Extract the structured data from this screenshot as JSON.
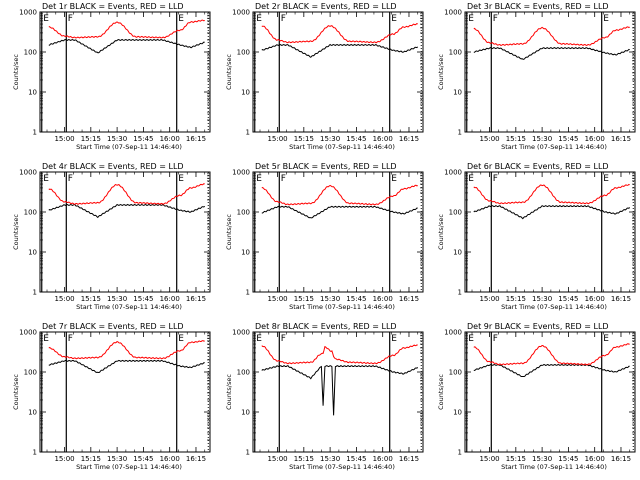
{
  "figure": {
    "ylabel": "Counts/sec",
    "xlabel": "Start Time (07-Sep-11 14:46:40)",
    "x_ticks": [
      "15:00",
      "15:15",
      "15:30",
      "15:45",
      "16:00",
      "16:15"
    ],
    "y_ticks": [
      "1",
      "10",
      "100",
      "1000"
    ],
    "markers": [
      "E",
      "F",
      "E"
    ]
  },
  "colors": {
    "events": "#000000",
    "lld": "#ff0000"
  },
  "chart_data": [
    {
      "type": "line",
      "title": "Det 1r BLACK = Events, RED = LLD",
      "yscale": "log",
      "ylim": [
        1,
        1000
      ],
      "x": [
        "14:51",
        "15:00",
        "15:06",
        "15:19",
        "15:30",
        "15:41",
        "15:56",
        "16:06",
        "16:12",
        "16:20"
      ],
      "series": [
        {
          "values": [
            150,
            200,
            200,
            95,
            200,
            200,
            200,
            150,
            130,
            175
          ]
        },
        {
          "values": [
            420,
            250,
            230,
            240,
            550,
            240,
            230,
            350,
            560,
            620
          ]
        }
      ]
    },
    {
      "type": "line",
      "title": "Det 2r BLACK = Events, RED = LLD",
      "yscale": "log",
      "ylim": [
        1,
        1000
      ],
      "x": [
        "14:51",
        "15:00",
        "15:06",
        "15:19",
        "15:30",
        "15:41",
        "15:56",
        "16:06",
        "16:12",
        "16:20"
      ],
      "series": [
        {
          "values": [
            110,
            150,
            150,
            75,
            150,
            150,
            150,
            110,
            100,
            135
          ]
        },
        {
          "values": [
            450,
            200,
            175,
            185,
            450,
            185,
            175,
            280,
            420,
            500
          ]
        }
      ]
    },
    {
      "type": "line",
      "title": "Det 3r BLACK = Events, RED = LLD",
      "yscale": "log",
      "ylim": [
        1,
        1000
      ],
      "x": [
        "14:51",
        "15:00",
        "15:06",
        "15:19",
        "15:30",
        "15:41",
        "15:56",
        "16:06",
        "16:12",
        "16:20"
      ],
      "series": [
        {
          "values": [
            100,
            125,
            125,
            65,
            125,
            125,
            125,
            95,
            85,
            115
          ]
        },
        {
          "values": [
            380,
            170,
            150,
            160,
            400,
            160,
            150,
            230,
            350,
            420
          ]
        }
      ]
    },
    {
      "type": "line",
      "title": "Det 4r BLACK = Events, RED = LLD",
      "yscale": "log",
      "ylim": [
        1,
        1000
      ],
      "x": [
        "14:51",
        "15:00",
        "15:06",
        "15:19",
        "15:30",
        "15:41",
        "15:56",
        "16:06",
        "16:12",
        "16:20"
      ],
      "series": [
        {
          "values": [
            110,
            150,
            150,
            75,
            150,
            150,
            150,
            110,
            100,
            140
          ]
        },
        {
          "values": [
            380,
            180,
            160,
            170,
            480,
            170,
            160,
            260,
            400,
            500
          ]
        }
      ]
    },
    {
      "type": "line",
      "title": "Det 5r BLACK = Events, RED = LLD",
      "yscale": "log",
      "ylim": [
        1,
        1000
      ],
      "x": [
        "14:51",
        "15:00",
        "15:06",
        "15:19",
        "15:30",
        "15:41",
        "15:56",
        "16:06",
        "16:12",
        "16:20"
      ],
      "series": [
        {
          "values": [
            95,
            135,
            135,
            70,
            135,
            135,
            135,
            100,
            90,
            125
          ]
        },
        {
          "values": [
            400,
            180,
            155,
            165,
            450,
            165,
            155,
            250,
            380,
            460
          ]
        }
      ]
    },
    {
      "type": "line",
      "title": "Det 6r BLACK = Events, RED = LLD",
      "yscale": "log",
      "ylim": [
        1,
        1000
      ],
      "x": [
        "14:51",
        "15:00",
        "15:06",
        "15:19",
        "15:30",
        "15:41",
        "15:56",
        "16:06",
        "16:12",
        "16:20"
      ],
      "series": [
        {
          "values": [
            100,
            140,
            140,
            70,
            140,
            140,
            140,
            100,
            90,
            130
          ]
        },
        {
          "values": [
            420,
            190,
            165,
            175,
            470,
            175,
            165,
            260,
            400,
            480
          ]
        }
      ]
    },
    {
      "type": "line",
      "title": "Det 7r BLACK = Events, RED = LLD",
      "yscale": "log",
      "ylim": [
        1,
        1000
      ],
      "x": [
        "14:51",
        "15:00",
        "15:06",
        "15:19",
        "15:30",
        "15:41",
        "15:56",
        "16:06",
        "16:12",
        "16:20"
      ],
      "series": [
        {
          "values": [
            150,
            190,
            190,
            95,
            190,
            190,
            190,
            140,
            130,
            170
          ]
        },
        {
          "values": [
            400,
            240,
            220,
            230,
            560,
            230,
            220,
            340,
            550,
            600
          ]
        }
      ]
    },
    {
      "type": "line",
      "title": "Det 8r BLACK = Events, RED = LLD",
      "yscale": "log",
      "ylim": [
        1,
        1000
      ],
      "x": [
        "14:51",
        "15:00",
        "15:06",
        "15:19",
        "15:25",
        "15:26",
        "15:27",
        "15:31",
        "15:32",
        "15:33",
        "15:41",
        "15:56",
        "16:06",
        "16:12",
        "16:20"
      ],
      "series": [
        {
          "values": [
            110,
            140,
            140,
            70,
            140,
            14,
            140,
            140,
            8,
            140,
            140,
            140,
            100,
            90,
            130
          ]
        },
        {
          "values": [
            450,
            190,
            165,
            175,
            280,
            300,
            420,
            330,
            250,
            210,
            175,
            165,
            260,
            400,
            470
          ]
        }
      ]
    },
    {
      "type": "line",
      "title": "Det 9r BLACK = Events, RED = LLD",
      "yscale": "log",
      "ylim": [
        1,
        1000
      ],
      "x": [
        "14:51",
        "15:00",
        "15:06",
        "15:19",
        "15:30",
        "15:41",
        "15:56",
        "16:06",
        "16:12",
        "16:20"
      ],
      "series": [
        {
          "values": [
            110,
            150,
            150,
            75,
            150,
            150,
            150,
            110,
            100,
            140
          ]
        },
        {
          "values": [
            420,
            180,
            155,
            165,
            450,
            165,
            155,
            260,
            420,
            500
          ]
        }
      ]
    }
  ]
}
